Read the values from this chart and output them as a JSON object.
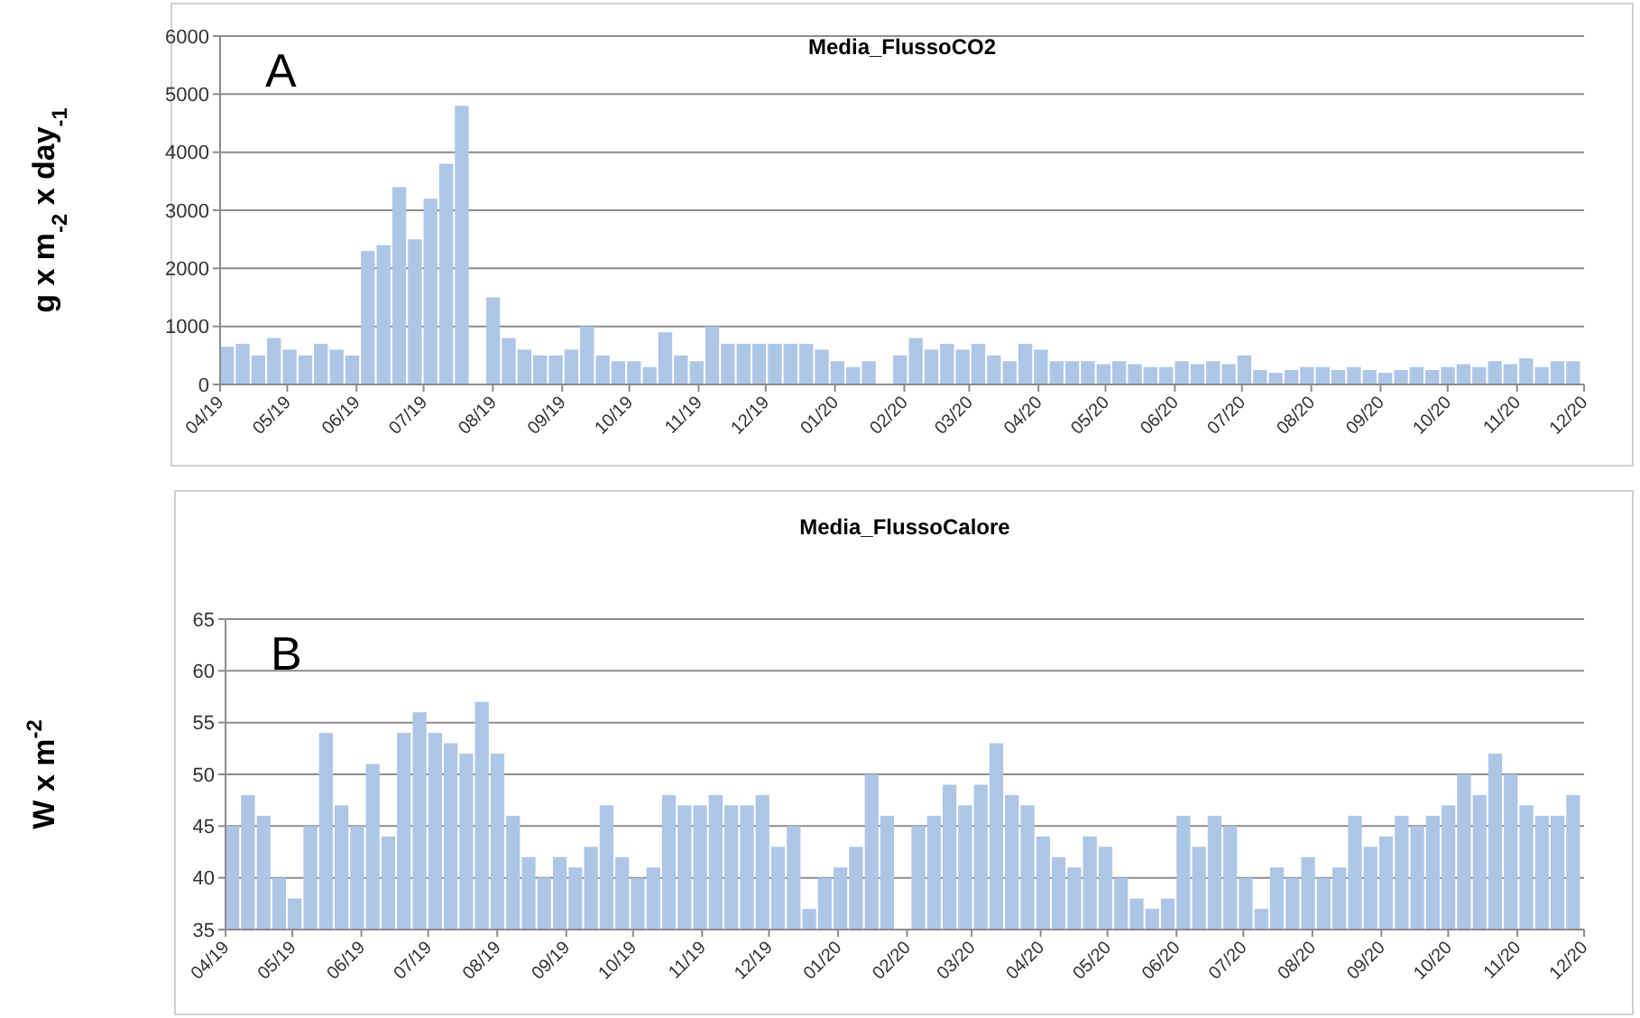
{
  "chart_data": [
    {
      "type": "bar",
      "title": "Media_FlussoCO2",
      "ylabel": "g x m$_{-2}$ x day$_{-1}$",
      "annotations": [
        "A"
      ],
      "grid": "y",
      "x": [
        "2019-04-01",
        "2019-04-08",
        "2019-04-15",
        "2019-04-22",
        "2019-04-29",
        "2019-05-06",
        "2019-05-13",
        "2019-05-20",
        "2019-05-27",
        "2019-06-03",
        "2019-06-10",
        "2019-06-17",
        "2019-06-24",
        "2019-07-01",
        "2019-07-08",
        "2019-07-15",
        "2019-07-22",
        "2019-07-29",
        "2019-08-05",
        "2019-08-12",
        "2019-08-19",
        "2019-08-26",
        "2019-09-02",
        "2019-09-09",
        "2019-09-16",
        "2019-09-23",
        "2019-09-30",
        "2019-10-07",
        "2019-10-14",
        "2019-10-21",
        "2019-10-28",
        "2019-11-04",
        "2019-11-11",
        "2019-11-18",
        "2019-11-25",
        "2019-12-02",
        "2019-12-09",
        "2019-12-16",
        "2019-12-23",
        "2019-12-30",
        "2020-01-06",
        "2020-01-13",
        "2020-01-20",
        "2020-01-27",
        "2020-02-03",
        "2020-02-10",
        "2020-02-17",
        "2020-02-24",
        "2020-03-02",
        "2020-03-09",
        "2020-03-16",
        "2020-03-23",
        "2020-03-30",
        "2020-04-06",
        "2020-04-13",
        "2020-04-20",
        "2020-04-27",
        "2020-05-04",
        "2020-05-11",
        "2020-05-18",
        "2020-05-25",
        "2020-06-01",
        "2020-06-08",
        "2020-06-15",
        "2020-06-22",
        "2020-06-29",
        "2020-07-06",
        "2020-07-13",
        "2020-07-20",
        "2020-07-27",
        "2020-08-03",
        "2020-08-10",
        "2020-08-17",
        "2020-08-24",
        "2020-08-31",
        "2020-09-07",
        "2020-09-14",
        "2020-09-21",
        "2020-09-28",
        "2020-10-05",
        "2020-10-12",
        "2020-10-19",
        "2020-10-26",
        "2020-11-02",
        "2020-11-09",
        "2020-11-16",
        "2020-11-23"
      ],
      "series": [
        {
          "color": "#aec6e6",
          "values": [
            650,
            700,
            500,
            800,
            600,
            500,
            700,
            600,
            500,
            2300,
            2400,
            3400,
            2500,
            3200,
            3800,
            4800,
            null,
            1500,
            800,
            600,
            500,
            500,
            600,
            1000,
            500,
            400,
            400,
            300,
            900,
            500,
            400,
            1000,
            700,
            700,
            700,
            700,
            700,
            700,
            600,
            400,
            300,
            400,
            null,
            500,
            800,
            600,
            700,
            600,
            700,
            500,
            400,
            700,
            600,
            400,
            400,
            400,
            350,
            400,
            350,
            300,
            300,
            400,
            350,
            400,
            350,
            500,
            250,
            200,
            250,
            300,
            300,
            250,
            300,
            250,
            200,
            250,
            300,
            250,
            300,
            350,
            300,
            400,
            350,
            450,
            300,
            400,
            400
          ]
        }
      ],
      "xlim": [
        "2019-04-01",
        "2020-12-01"
      ],
      "xticks": [
        {
          "value": "2019-04-01",
          "label": "04/19"
        },
        {
          "value": "2019-05-01",
          "label": "05/19"
        },
        {
          "value": "2019-06-01",
          "label": "06/19"
        },
        {
          "value": "2019-07-01",
          "label": "07/19"
        },
        {
          "value": "2019-08-01",
          "label": "08/19"
        },
        {
          "value": "2019-09-01",
          "label": "09/19"
        },
        {
          "value": "2019-10-01",
          "label": "10/19"
        },
        {
          "value": "2019-11-01",
          "label": "11/19"
        },
        {
          "value": "2019-12-01",
          "label": "12/19"
        },
        {
          "value": "2020-01-01",
          "label": "01/20"
        },
        {
          "value": "2020-02-01",
          "label": "02/20"
        },
        {
          "value": "2020-03-01",
          "label": "03/20"
        },
        {
          "value": "2020-04-01",
          "label": "04/20"
        },
        {
          "value": "2020-05-01",
          "label": "05/20"
        },
        {
          "value": "2020-06-01",
          "label": "06/20"
        },
        {
          "value": "2020-07-01",
          "label": "07/20"
        },
        {
          "value": "2020-08-01",
          "label": "08/20"
        },
        {
          "value": "2020-09-01",
          "label": "09/20"
        },
        {
          "value": "2020-10-01",
          "label": "10/20"
        },
        {
          "value": "2020-11-01",
          "label": "11/20"
        },
        {
          "value": "2020-12-01",
          "label": "12/20"
        }
      ],
      "ylim": [
        0,
        6000
      ],
      "yticks": [
        0,
        1000,
        2000,
        3000,
        4000,
        5000,
        6000
      ]
    },
    {
      "type": "bar",
      "title": "Media_FlussoCalore",
      "ylabel": "W x m$^{-2}$",
      "annotations": [
        "B"
      ],
      "grid": "y",
      "x": [
        "2019-04-01",
        "2019-04-08",
        "2019-04-15",
        "2019-04-22",
        "2019-04-29",
        "2019-05-06",
        "2019-05-13",
        "2019-05-20",
        "2019-05-27",
        "2019-06-03",
        "2019-06-10",
        "2019-06-17",
        "2019-06-24",
        "2019-07-01",
        "2019-07-08",
        "2019-07-15",
        "2019-07-22",
        "2019-07-29",
        "2019-08-05",
        "2019-08-12",
        "2019-08-19",
        "2019-08-26",
        "2019-09-02",
        "2019-09-09",
        "2019-09-16",
        "2019-09-23",
        "2019-09-30",
        "2019-10-07",
        "2019-10-14",
        "2019-10-21",
        "2019-10-28",
        "2019-11-04",
        "2019-11-11",
        "2019-11-18",
        "2019-11-25",
        "2019-12-02",
        "2019-12-09",
        "2019-12-16",
        "2019-12-23",
        "2019-12-30",
        "2020-01-06",
        "2020-01-13",
        "2020-01-20",
        "2020-01-27",
        "2020-02-03",
        "2020-02-10",
        "2020-02-17",
        "2020-02-24",
        "2020-03-02",
        "2020-03-09",
        "2020-03-16",
        "2020-03-23",
        "2020-03-30",
        "2020-04-06",
        "2020-04-13",
        "2020-04-20",
        "2020-04-27",
        "2020-05-04",
        "2020-05-11",
        "2020-05-18",
        "2020-05-25",
        "2020-06-01",
        "2020-06-08",
        "2020-06-15",
        "2020-06-22",
        "2020-06-29",
        "2020-07-06",
        "2020-07-13",
        "2020-07-20",
        "2020-07-27",
        "2020-08-03",
        "2020-08-10",
        "2020-08-17",
        "2020-08-24",
        "2020-08-31",
        "2020-09-07",
        "2020-09-14",
        "2020-09-21",
        "2020-09-28",
        "2020-10-05",
        "2020-10-12",
        "2020-10-19",
        "2020-10-26",
        "2020-11-02",
        "2020-11-09",
        "2020-11-16",
        "2020-11-23"
      ],
      "series": [
        {
          "color": "#aec6e6",
          "values": [
            45,
            48,
            46,
            40,
            38,
            45,
            54,
            47,
            45,
            51,
            44,
            54,
            56,
            54,
            53,
            52,
            57,
            52,
            46,
            42,
            40,
            42,
            41,
            43,
            47,
            42,
            40,
            41,
            48,
            47,
            47,
            48,
            47,
            47,
            48,
            43,
            45,
            37,
            40,
            41,
            43,
            50,
            46,
            null,
            45,
            46,
            49,
            47,
            49,
            53,
            48,
            47,
            44,
            42,
            41,
            44,
            43,
            40,
            38,
            37,
            38,
            46,
            43,
            46,
            45,
            40,
            37,
            41,
            40,
            42,
            40,
            41,
            46,
            43,
            44,
            46,
            45,
            46,
            47,
            50,
            48,
            52,
            50,
            47,
            46,
            46,
            48
          ]
        }
      ],
      "xlim": [
        "2019-04-01",
        "2020-12-01"
      ],
      "xticks": [
        {
          "value": "2019-04-01",
          "label": "04/19"
        },
        {
          "value": "2019-05-01",
          "label": "05/19"
        },
        {
          "value": "2019-06-01",
          "label": "06/19"
        },
        {
          "value": "2019-07-01",
          "label": "07/19"
        },
        {
          "value": "2019-08-01",
          "label": "08/19"
        },
        {
          "value": "2019-09-01",
          "label": "09/19"
        },
        {
          "value": "2019-10-01",
          "label": "10/19"
        },
        {
          "value": "2019-11-01",
          "label": "11/19"
        },
        {
          "value": "2019-12-01",
          "label": "12/19"
        },
        {
          "value": "2020-01-01",
          "label": "01/20"
        },
        {
          "value": "2020-02-01",
          "label": "02/20"
        },
        {
          "value": "2020-03-01",
          "label": "03/20"
        },
        {
          "value": "2020-04-01",
          "label": "04/20"
        },
        {
          "value": "2020-05-01",
          "label": "05/20"
        },
        {
          "value": "2020-06-01",
          "label": "06/20"
        },
        {
          "value": "2020-07-01",
          "label": "07/20"
        },
        {
          "value": "2020-08-01",
          "label": "08/20"
        },
        {
          "value": "2020-09-01",
          "label": "09/20"
        },
        {
          "value": "2020-10-01",
          "label": "10/20"
        },
        {
          "value": "2020-11-01",
          "label": "11/20"
        },
        {
          "value": "2020-12-01",
          "label": "12/20"
        }
      ],
      "ylim": [
        35,
        65
      ],
      "yticks": [
        35,
        40,
        45,
        50,
        55,
        60,
        65
      ]
    }
  ]
}
